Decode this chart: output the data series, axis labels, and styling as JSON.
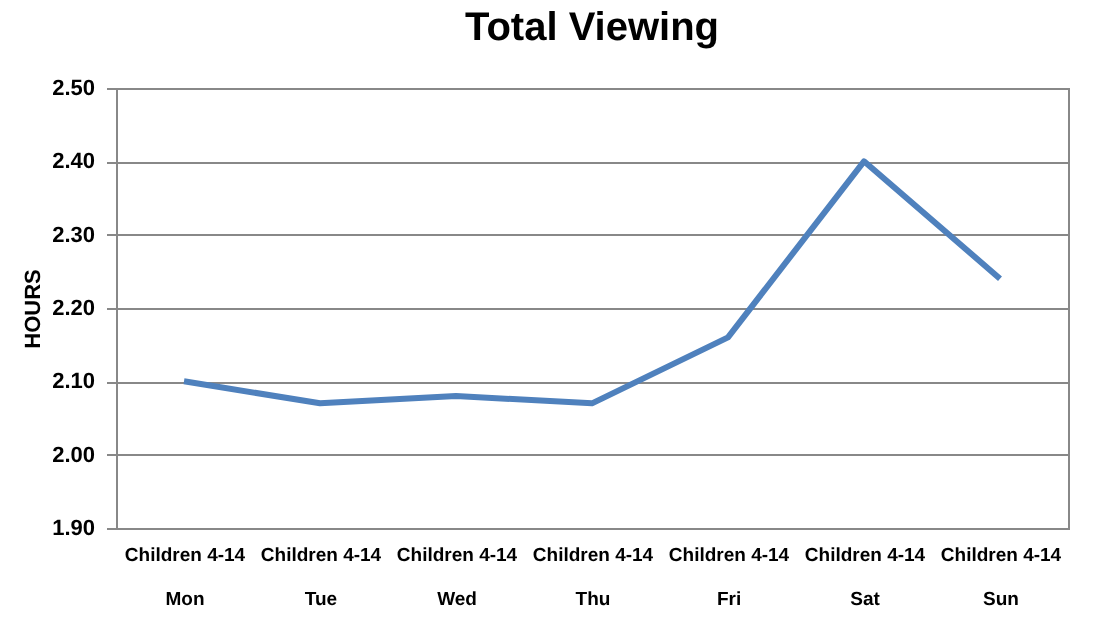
{
  "chart_data": {
    "type": "line",
    "title": "Total Viewing",
    "ylabel": "HOURS",
    "categories": [
      "Children 4-14\nMon",
      "Children 4-14\nTue",
      "Children 4-14\nWed",
      "Children 4-14\nThu",
      "Children 4-14\nFri",
      "Children 4-14\nSat",
      "Children 4-14\nSun"
    ],
    "series": [
      {
        "color": "#4f81bd",
        "values": [
          2.1,
          2.07,
          2.08,
          2.07,
          2.16,
          2.4,
          2.24
        ]
      }
    ],
    "ylim": [
      1.9,
      2.5
    ],
    "yticks": [
      {
        "value": 1.9,
        "label": "1.90"
      },
      {
        "value": 2.0,
        "label": "2.00"
      },
      {
        "value": 2.1,
        "label": "2.10"
      },
      {
        "value": 2.2,
        "label": "2.20"
      },
      {
        "value": 2.3,
        "label": "2.30"
      },
      {
        "value": 2.4,
        "label": "2.40"
      },
      {
        "value": 2.5,
        "label": "2.50"
      }
    ],
    "grid": "y",
    "legend": false,
    "marker": "none",
    "line_style": "solid"
  }
}
